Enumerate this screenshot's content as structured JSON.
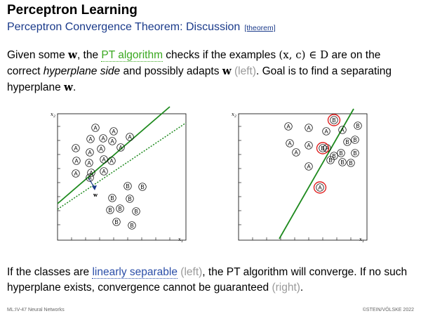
{
  "slide": {
    "title": "Perceptron Learning",
    "subtitle": "Perceptron Convergence Theorem: Discussion",
    "subtitle_tag": "[theorem]"
  },
  "para1": {
    "t1": "Given some ",
    "w1": "w",
    "t2": ", the ",
    "pt_link": "PT algorithm",
    "t3": " checks if the examples ",
    "set_expr": "(x, c) ∈ D",
    "t4": " are on the correct ",
    "hyperplane_side": "hyperplane side",
    "t5": " and possibly adapts ",
    "w2": "w",
    "left": "(left)",
    "t6": ". Goal is to find a separating hyperplane ",
    "w3": "w",
    "t7": "."
  },
  "para2": {
    "t1": "If the classes are ",
    "lin_sep": "linearly separable",
    "left": "(left)",
    "t2": ", the PT algorithm will converge. If no such hyperplane exists, convergence cannot be guaranteed ",
    "right": "(right)",
    "t3": "."
  },
  "plots": {
    "x1_label": "x",
    "x1_sub": "1",
    "x2_label": "x",
    "x2_sub": "2",
    "w_label": "w",
    "class_a": "A",
    "class_b": "B"
  },
  "footer": {
    "left": "ML:IV-47    Neural Networks",
    "right": "©STEIN/VÖLSKE 2022"
  },
  "colors": {
    "subtitle": "#1a3a8a",
    "link_green": "#3aa820",
    "line_green": "#1e8a1e",
    "misclassified": "#e02020",
    "arrow": "#1a3a8a"
  }
}
